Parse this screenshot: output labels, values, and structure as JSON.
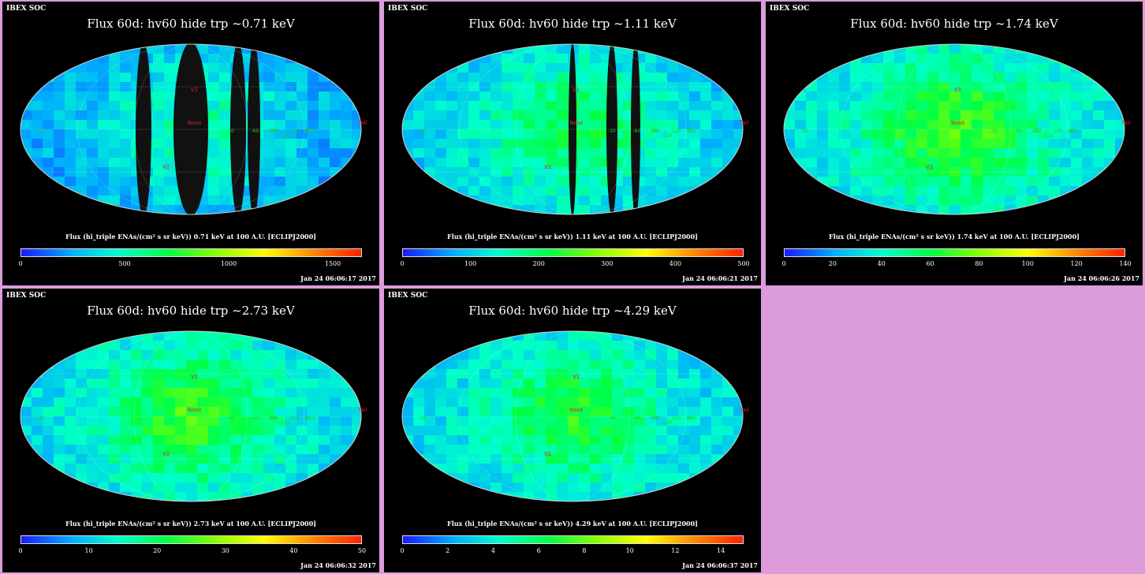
{
  "header_text": "IBEX SOC",
  "colorbar": {
    "gradient": [
      "#1a1aff",
      "#00aaff",
      "#00ffcc",
      "#00ff44",
      "#88ff00",
      "#ffff00",
      "#ff8800",
      "#ff2200"
    ]
  },
  "panels": [
    {
      "title": "Flux   60d: hv60 hide trp ~0.71 keV",
      "subtitle": "Flux (hi_triple ENAs/(cm² s sr keV))  0.71 keV at 100 A.U. [ECLIPJ2000]",
      "ticks": [
        "0",
        "500",
        "1000",
        "1500"
      ],
      "tick_vals": [
        0,
        500,
        1000,
        1500
      ],
      "max": 1640,
      "timestamp": "Jan 24 06:06:17 2017",
      "level": 0.28
    },
    {
      "title": "Flux   60d: hv60 hide trp ~1.11 keV",
      "subtitle": "Flux (hi_triple ENAs/(cm² s sr keV))  1.11 keV at 100 A.U. [ECLIPJ2000]",
      "ticks": [
        "0",
        "100",
        "200",
        "300",
        "400",
        "500"
      ],
      "tick_vals": [
        0,
        100,
        200,
        300,
        400,
        500
      ],
      "max": 500,
      "timestamp": "Jan 24 06:06:21 2017",
      "level": 0.35
    },
    {
      "title": "Flux   60d: hv60 hide trp ~1.74 keV",
      "subtitle": "Flux (hi_triple ENAs/(cm² s sr keV))  1.74 keV at 100 A.U. [ECLIPJ2000]",
      "ticks": [
        "0",
        "20",
        "40",
        "60",
        "80",
        "100",
        "120",
        "140"
      ],
      "tick_vals": [
        0,
        20,
        40,
        60,
        80,
        100,
        120,
        140
      ],
      "max": 140,
      "timestamp": "Jan 24 06:06:26 2017",
      "level": 0.42
    },
    {
      "title": "Flux   60d: hv60 hide trp ~2.73 keV",
      "subtitle": "Flux (hi_triple ENAs/(cm² s sr keV))  2.73 keV at 100 A.U. [ECLIPJ2000]",
      "ticks": [
        "0",
        "10",
        "20",
        "30",
        "40",
        "50"
      ],
      "tick_vals": [
        0,
        10,
        20,
        30,
        40,
        50
      ],
      "max": 50,
      "timestamp": "Jan 24 06:06:32 2017",
      "level": 0.4
    },
    {
      "title": "Flux   60d: hv60 hide trp ~4.29 keV",
      "subtitle": "Flux (hi_triple ENAs/(cm² s sr keV))  4.29 keV at 100 A.U. [ECLIPJ2000]",
      "ticks": [
        "0",
        "2",
        "4",
        "6",
        "8",
        "10",
        "12",
        "14"
      ],
      "tick_vals": [
        0,
        2,
        4,
        6,
        8,
        10,
        12,
        14
      ],
      "max": 15,
      "timestamp": "Jan 24 06:06:37 2017",
      "level": 0.38
    }
  ],
  "map_labels": {
    "v1": "V1",
    "v2": "V2",
    "nose": "Nose",
    "tail": "Tail",
    "lon": [
      "-30",
      "-60",
      "-90",
      "-120",
      "-150",
      "150",
      "120",
      "90",
      "30"
    ],
    "lat": [
      "60",
      "30",
      "-30",
      "-60",
      "-90"
    ]
  }
}
